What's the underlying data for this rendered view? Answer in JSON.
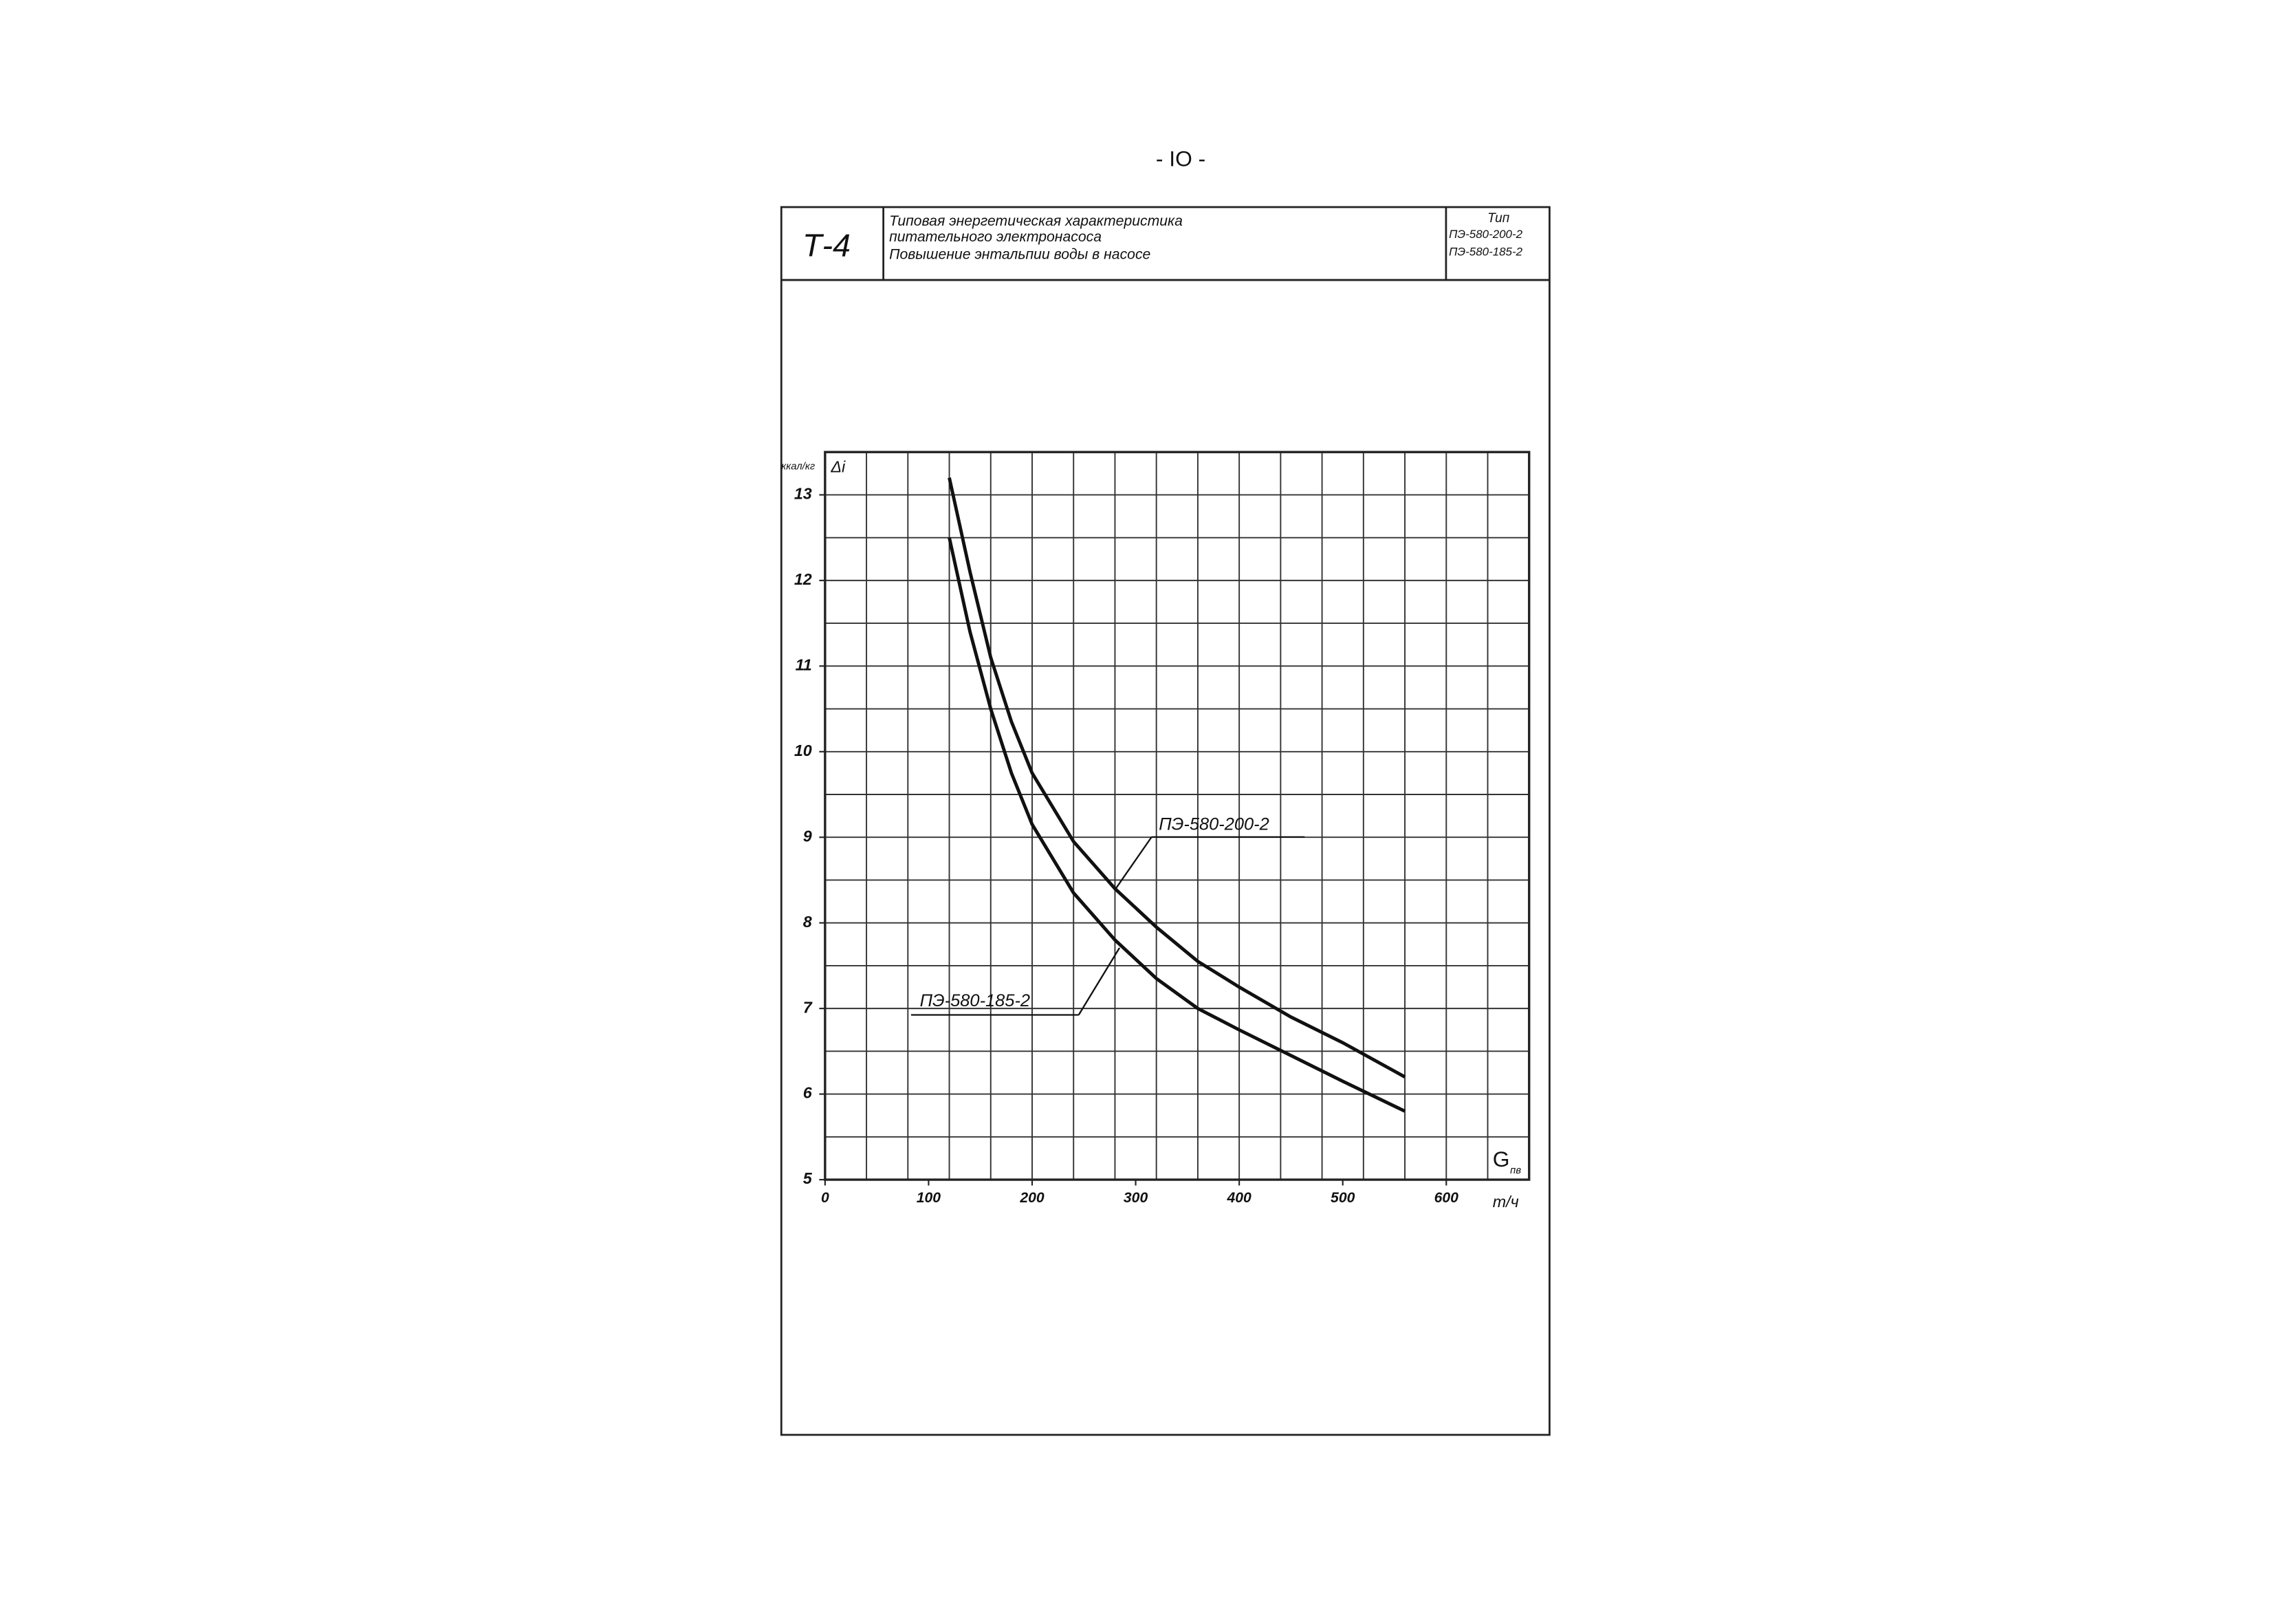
{
  "page_number": "- IO -",
  "header": {
    "code": "Т-4",
    "title_lines": [
      "Типовая энергетическая характеристика",
      "питательного электронасоса",
      "Повышение энтальпии воды в насосе"
    ],
    "type_label": "Тип",
    "types": [
      "ПЭ-580-200-2",
      "ПЭ-580-185-2"
    ]
  },
  "chart_data": {
    "type": "line",
    "y_label": "Δi",
    "y_unit": "ккал/кг",
    "x_label": "G",
    "x_label_sub": "пв",
    "x_unit": "т/ч",
    "x": [
      120,
      140,
      160,
      180,
      200,
      240,
      280,
      320,
      360,
      400,
      450,
      500,
      560
    ],
    "series": [
      {
        "name": "ПЭ-580-200-2",
        "color": "#111111",
        "values": [
          13.2,
          12.1,
          11.1,
          10.35,
          9.75,
          8.95,
          8.4,
          7.95,
          7.55,
          7.25,
          6.9,
          6.6,
          6.2
        ]
      },
      {
        "name": "ПЭ-580-185-2",
        "color": "#111111",
        "values": [
          12.5,
          11.4,
          10.5,
          9.75,
          9.15,
          8.35,
          7.8,
          7.35,
          7.0,
          6.75,
          6.45,
          6.15,
          5.8
        ]
      }
    ],
    "xlim": [
      0,
      680
    ],
    "ylim": [
      5,
      13.5
    ],
    "xticks": [
      0,
      100,
      200,
      300,
      400,
      500,
      600
    ],
    "yticks": [
      5,
      6,
      7,
      8,
      9,
      10,
      11,
      12,
      13
    ],
    "grid": true,
    "minor_grid": {
      "x_step": 40,
      "y_step": 0.5
    }
  }
}
